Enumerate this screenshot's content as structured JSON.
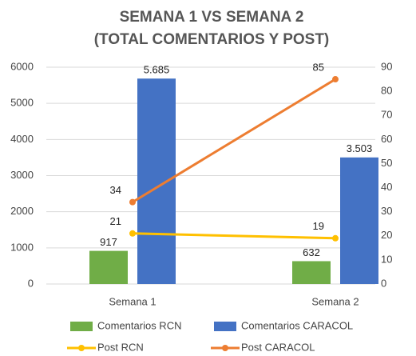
{
  "chart_data": {
    "type": "bar",
    "title": [
      "SEMANA 1 VS SEMANA 2",
      "(TOTAL COMENTARIOS Y POST)"
    ],
    "categories": [
      "Semana 1",
      "Semana 2"
    ],
    "series": [
      {
        "name": "Comentarios RCN",
        "type": "bar",
        "color": "#70ad47",
        "values": [
          917,
          632
        ]
      },
      {
        "name": "Comentarios CARACOL",
        "type": "bar",
        "color": "#4472c4",
        "values": [
          5685,
          3503
        ],
        "value_labels": [
          "5.685",
          "3.503"
        ]
      },
      {
        "name": "Post RCN",
        "type": "line",
        "axis": "y2",
        "color": "#ffc000",
        "values": [
          21,
          19
        ]
      },
      {
        "name": "Post CARACOL",
        "type": "line",
        "axis": "y2",
        "color": "#ed7d31",
        "values": [
          34,
          85
        ]
      }
    ],
    "ylim": [
      0,
      6000
    ],
    "yticks": [
      0,
      1000,
      2000,
      3000,
      4000,
      5000,
      6000
    ],
    "y2lim": [
      0,
      90
    ],
    "y2ticks": [
      0,
      10,
      20,
      30,
      40,
      50,
      60,
      70,
      80,
      90
    ],
    "grid": true,
    "legend": "bottom"
  }
}
